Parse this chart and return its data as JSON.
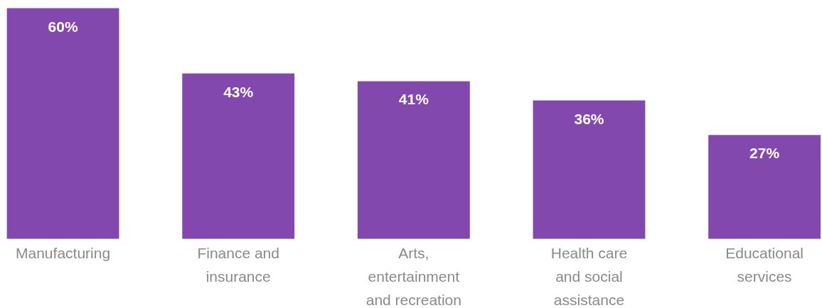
{
  "chart_data": {
    "type": "bar",
    "categories": [
      "Manufacturing",
      "Finance and\ninsurance",
      "Arts,\nentertainment\nand recreation",
      "Health care\nand social\nassistance",
      "Educational\nservices"
    ],
    "values": [
      60,
      43,
      41,
      36,
      27
    ],
    "value_labels": [
      "60%",
      "43%",
      "41%",
      "36%",
      "27%"
    ],
    "color": "#8348ad"
  }
}
